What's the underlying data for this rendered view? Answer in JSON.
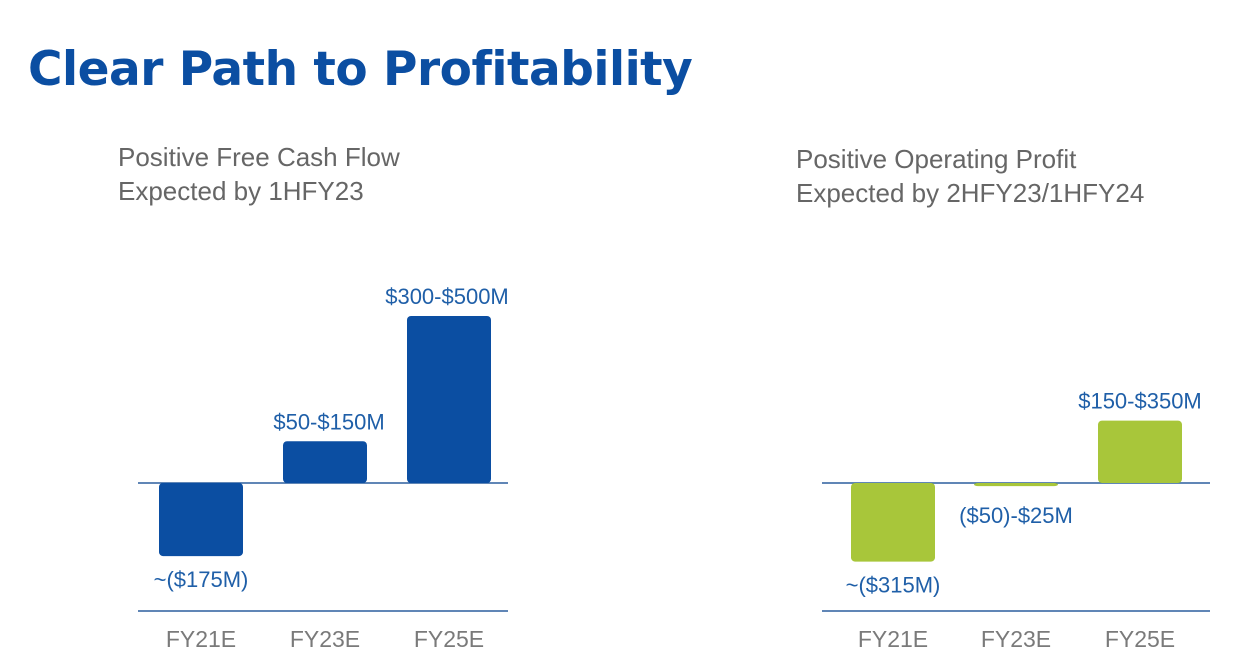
{
  "page": {
    "title": "Clear Path to Profitability"
  },
  "chart_data": [
    {
      "type": "bar",
      "subtitle_line1": "Positive Free Cash Flow",
      "subtitle_line2": "Expected by 1HFY23",
      "categories": [
        "FY21E",
        "FY23E",
        "FY25E"
      ],
      "values": [
        -175,
        100,
        400
      ],
      "ranges": [
        null,
        [
          50,
          150
        ],
        [
          300,
          500
        ]
      ],
      "data_labels": [
        "~($175M)",
        "$50-$150M",
        "$300-$500M"
      ],
      "unit": "$M",
      "color": "#0b4ea2",
      "label_color": "#1f5fa8"
    },
    {
      "type": "bar",
      "subtitle_line1": "Positive Operating Profit",
      "subtitle_line2": "Expected by 2HFY23/1HFY24",
      "categories": [
        "FY21E",
        "FY23E",
        "FY25E"
      ],
      "values": [
        -315,
        -12.5,
        250
      ],
      "ranges": [
        null,
        [
          -50,
          25
        ],
        [
          150,
          350
        ]
      ],
      "data_labels": [
        "~($315M)",
        "($50)-$25M",
        "$150-$350M"
      ],
      "unit": "$M",
      "color": "#a8c63a",
      "label_color": "#1f5fa8"
    }
  ]
}
